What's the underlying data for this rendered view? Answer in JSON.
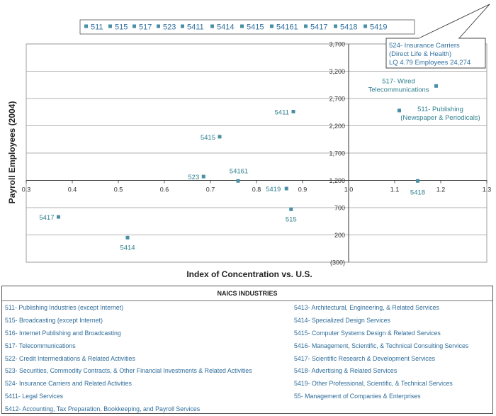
{
  "chart_data": {
    "type": "scatter",
    "xlabel": "Index of Concentration vs. U.S.",
    "ylabel": "Payroll Employees (2004)",
    "xlim": [
      0.3,
      1.3
    ],
    "ylim": [
      -300,
      3700
    ],
    "x_ticks": [
      "0.3",
      "0.4",
      "0.5",
      "0.6",
      "0.7",
      "0.8",
      "0.9",
      "1.0",
      "1.1",
      "1.2",
      "1.3"
    ],
    "y_ticks": [
      "(300)",
      "200",
      "700",
      "1,200",
      "1,700",
      "2,200",
      "2,700",
      "3,200",
      "3,700"
    ],
    "y_tick_values": [
      -300,
      200,
      700,
      1200,
      1700,
      2200,
      2700,
      3200,
      3700
    ],
    "grid": "horizontal",
    "legend_position": "top",
    "legend": [
      "511",
      "515",
      "517",
      "523",
      "5411",
      "5414",
      "5415",
      "54161",
      "5417",
      "5418",
      "5419"
    ],
    "points": [
      {
        "label": "5417",
        "x": 0.37,
        "y": 530
      },
      {
        "label": "5414",
        "x": 0.52,
        "y": 150
      },
      {
        "label": "523",
        "x": 0.685,
        "y": 1270
      },
      {
        "label": "54161",
        "x": 0.76,
        "y": 1190
      },
      {
        "label": "5415",
        "x": 0.72,
        "y": 2000
      },
      {
        "label": "5411",
        "x": 0.88,
        "y": 2460
      },
      {
        "label": "5419",
        "x": 0.865,
        "y": 1050
      },
      {
        "label": "515",
        "x": 0.875,
        "y": 670
      },
      {
        "label": "511- Publishing\n(Newspaper & Periodicals)",
        "x": 1.11,
        "y": 2480
      },
      {
        "label": "517- Wired\nTelecommunications",
        "x": 1.19,
        "y": 2930
      },
      {
        "label": "5418",
        "x": 1.15,
        "y": 1190
      }
    ],
    "callout": [
      "524- Insurance Carriers",
      "(Direct Life & Health)",
      "LQ 4.79 Employees 24,274"
    ],
    "point_color": "#4a8fa3"
  },
  "naics": {
    "title": "NAICS INDUSTRIES",
    "left": [
      "511- Publishing Industries (except Internet)",
      "515- Broadcasting (except Internet)",
      "516- Internet Publishing and Broadcasting",
      "517- Telecommunications",
      "522- Credit Intermediations & Related Activities",
      "523- Securities, Commodity Contracts, & Other Financial Investments & Related Activities",
      "524- Insurance Carriers and Related Activities",
      "5411- Legal Services",
      "5412- Accounting, Tax Preparation, Bookkeeping, and Payroll Services"
    ],
    "right": [
      "5413- Architectural, Engineering, & Related Services",
      "5414- Specialized Design Services",
      "5415- Computer Systems Design & Related Services",
      "5416- Management, Scientific, & Technical Consulting Services",
      "5417- Scientific Research & Development Services",
      "5418- Advertising & Related Services",
      "5419- Other Professional, Scientific, & Technical Services",
      "55- Management of Companies & Enterprises"
    ]
  }
}
